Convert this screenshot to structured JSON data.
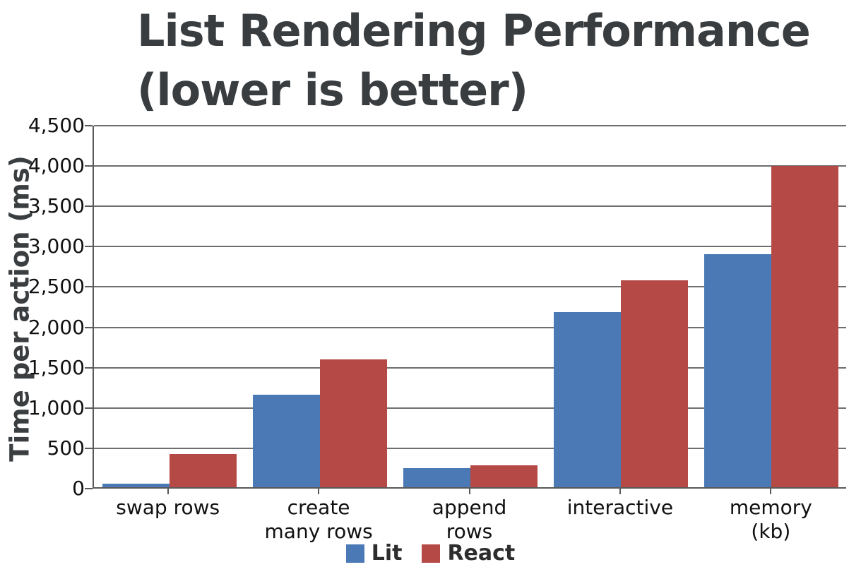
{
  "title": {
    "line1": "List Rendering Performance",
    "line2": "(lower is better)"
  },
  "chart_data": {
    "type": "bar",
    "title": "List Rendering Performance (lower is better)",
    "categories": [
      "swap rows",
      "create many rows",
      "append rows",
      "interactive",
      "memory (kb)"
    ],
    "series": [
      {
        "name": "Lit",
        "color": "#4A79B5",
        "values": [
          45,
          1150,
          240,
          2180,
          2900
        ]
      },
      {
        "name": "React",
        "color": "#B54945",
        "values": [
          410,
          1590,
          275,
          2575,
          4000
        ]
      }
    ],
    "xlabel": "",
    "ylabel": "Time per action (ms)",
    "ylim": [
      0,
      4500
    ],
    "ytick_step": 500,
    "yticks": [
      0,
      500,
      1000,
      1500,
      2000,
      2500,
      3000,
      3500,
      4000,
      4500
    ],
    "ytick_labels": [
      "0",
      "500",
      "1,000",
      "1,500",
      "2,000",
      "2,500",
      "3,000",
      "3,500",
      "4,000",
      "4,500"
    ],
    "grid": true,
    "legend_position": "bottom"
  },
  "colors": {
    "lit": "#4A79B5",
    "react": "#B54945",
    "title_text": "#3a3d40",
    "axis": "#595959",
    "gridline": "#6e6e6e"
  }
}
